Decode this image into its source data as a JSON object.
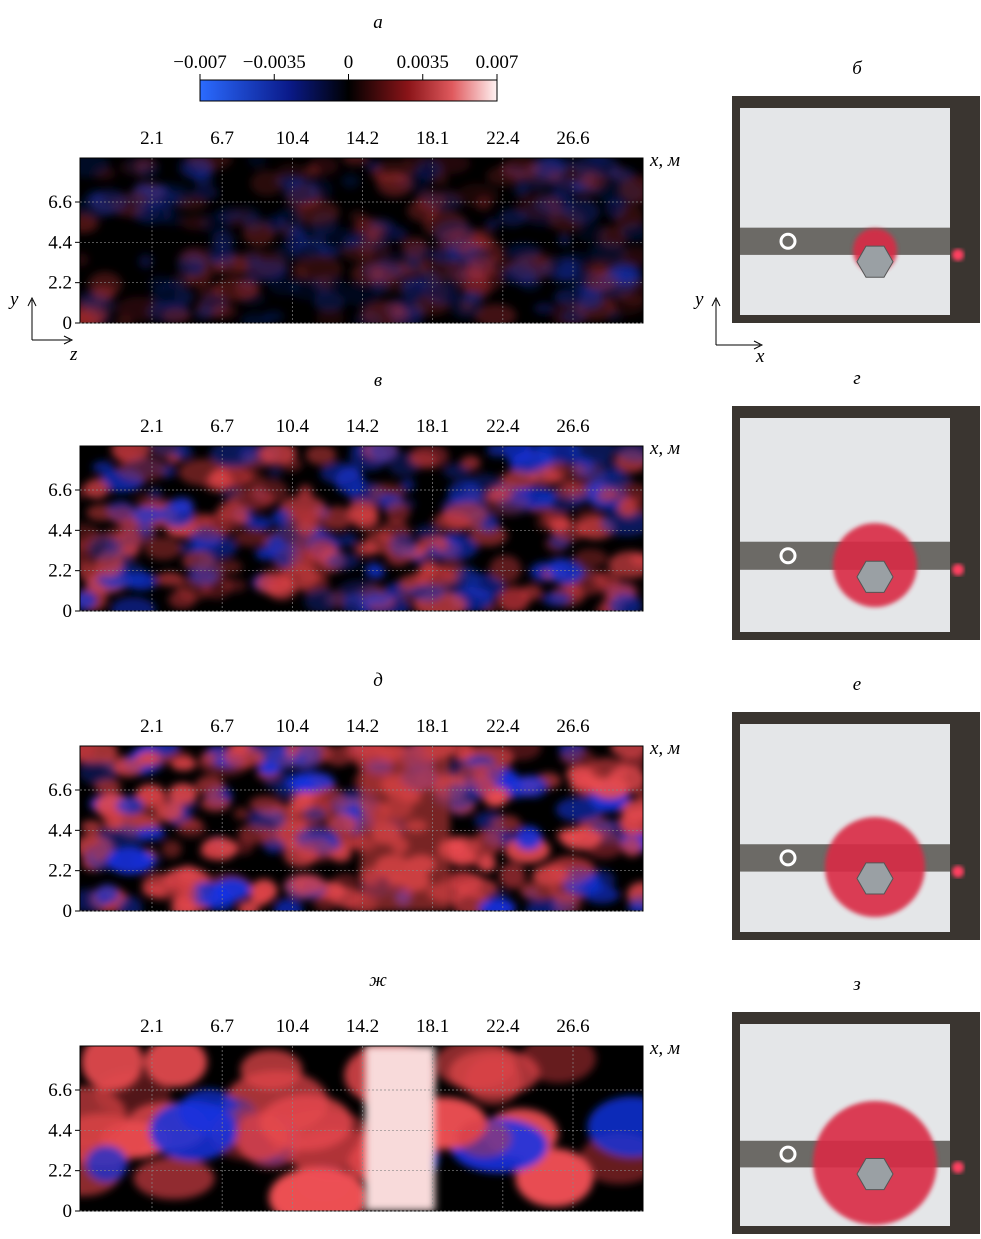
{
  "figure": {
    "colorbar": {
      "lim": [
        -0.007,
        0.007
      ],
      "ticks": [
        {
          "value": -0.007,
          "label": "−0.007"
        },
        {
          "value": -0.0035,
          "label": "−0.0035"
        },
        0,
        0.0035,
        0.007
      ]
    },
    "xticks": [
      2.1,
      6.7,
      10.4,
      14.2,
      18.1,
      22.4,
      26.6
    ],
    "yticks": [
      0,
      2.2,
      4.4,
      6.6
    ],
    "ylim": [
      0,
      9
    ],
    "x_axis_label": "x, м",
    "panels": [
      {
        "label": "а"
      },
      {
        "label": "в"
      },
      {
        "label": "д"
      },
      {
        "label": "ж"
      }
    ],
    "photos": [
      {
        "label": "б"
      },
      {
        "label": "г"
      },
      {
        "label": "е"
      },
      {
        "label": "з"
      }
    ],
    "axes_a": {
      "y": "y",
      "z": "z"
    },
    "axes_b": {
      "y": "y",
      "x": "x"
    }
  }
}
